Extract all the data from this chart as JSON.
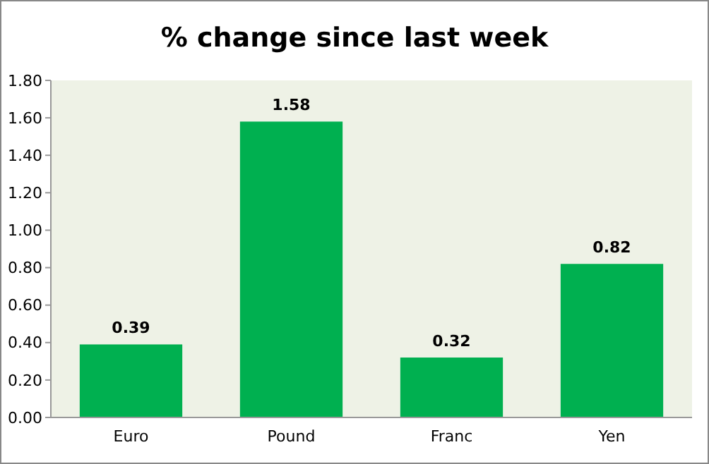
{
  "chart_data": {
    "type": "bar",
    "title": "% change since last week",
    "categories": [
      "Euro",
      "Pound",
      "Franc",
      "Yen"
    ],
    "values": [
      0.39,
      1.58,
      0.32,
      0.82
    ],
    "color": "#00b050",
    "data_labels": true,
    "ylim": [
      0,
      1.8
    ],
    "yticks": [
      {
        "value": 0,
        "label": "0.00"
      },
      {
        "value": 0.2,
        "label": "0.20"
      },
      {
        "value": 0.4,
        "label": "0.40"
      },
      {
        "value": 0.6,
        "label": "0.60"
      },
      {
        "value": 0.8,
        "label": "0.80"
      },
      {
        "value": 1,
        "label": "1.00"
      },
      {
        "value": 1.2,
        "label": "1.20"
      },
      {
        "value": 1.4,
        "label": "1.40"
      },
      {
        "value": 1.6,
        "label": "1.60"
      },
      {
        "value": 1.8,
        "label": "1.80"
      }
    ]
  }
}
